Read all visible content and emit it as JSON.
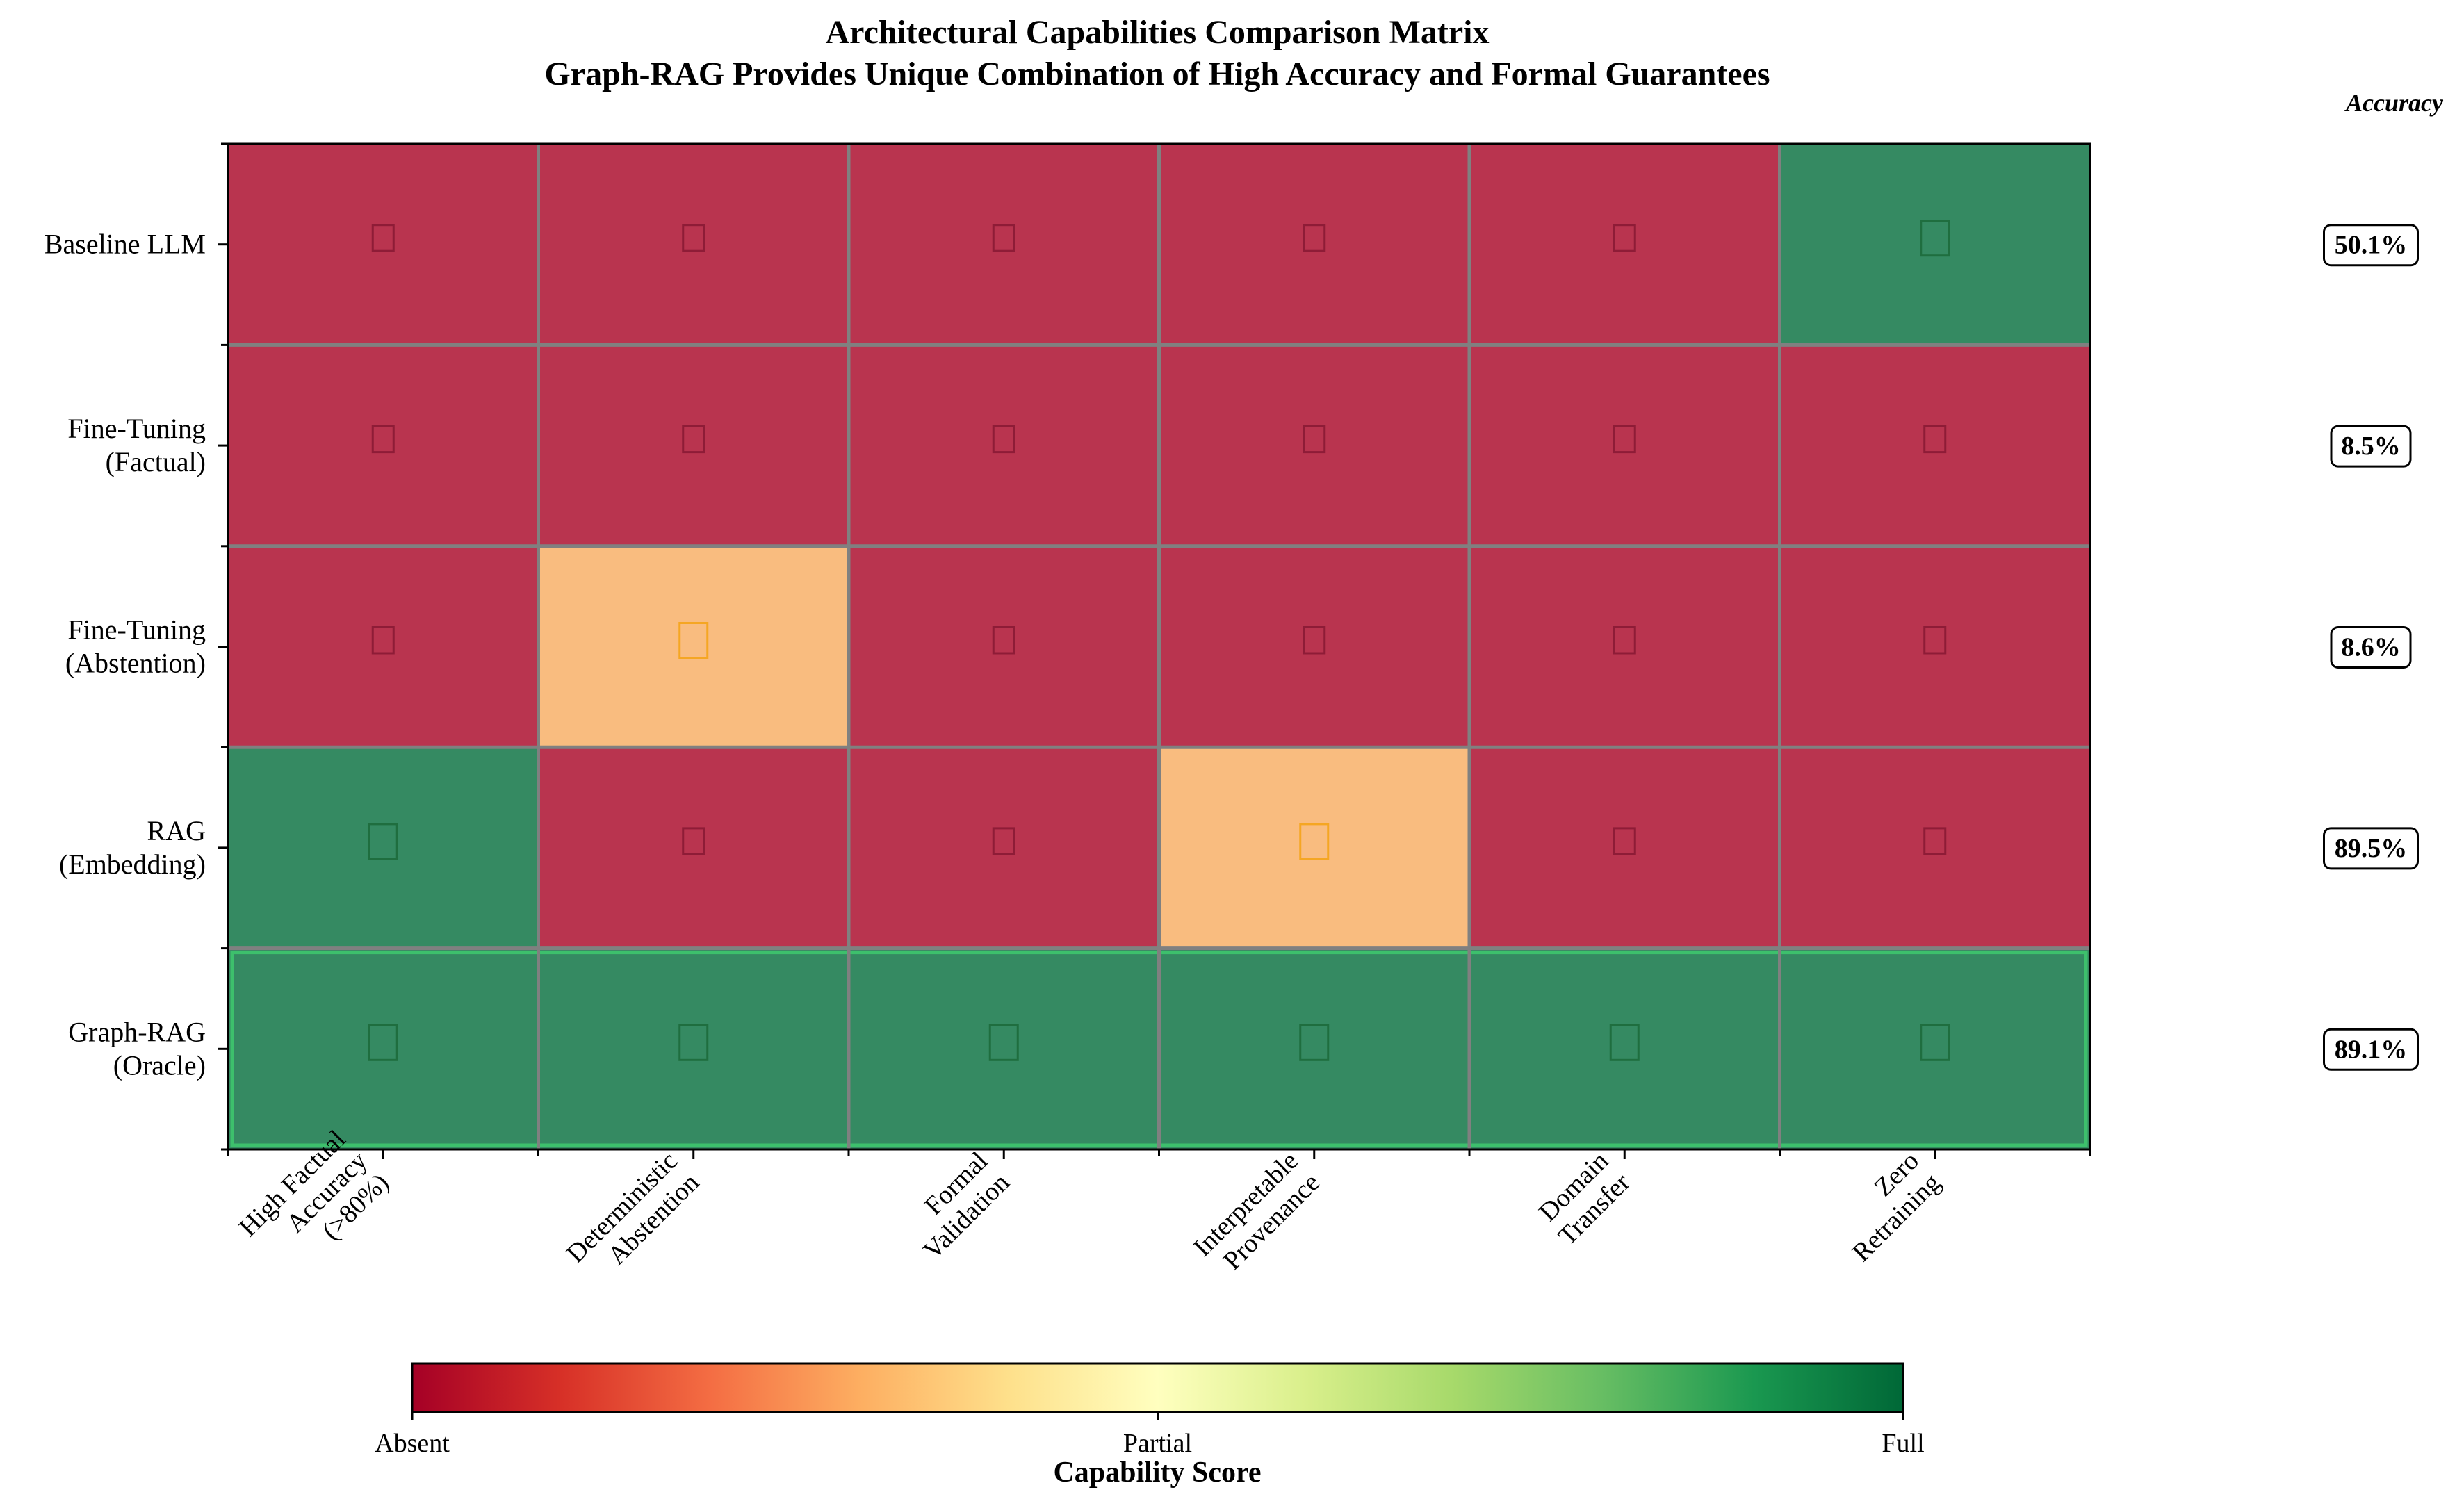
{
  "chart_data": {
    "type": "heatmap",
    "title": "Architectural Capabilities Comparison Matrix",
    "subtitle": "Graph-RAG Provides Unique Combination of High Accuracy and Formal Guarantees",
    "rows": [
      [
        "Baseline LLM"
      ],
      [
        "Fine-Tuning",
        "(Factual)"
      ],
      [
        "Fine-Tuning",
        "(Abstention)"
      ],
      [
        "RAG",
        "(Embedding)"
      ],
      [
        "Graph-RAG",
        "(Oracle)"
      ]
    ],
    "columns": [
      [
        "High Factual",
        "Accuracy",
        "(>80%)"
      ],
      [
        "Deterministic",
        "Abstention"
      ],
      [
        "Formal",
        "Validation"
      ],
      [
        "Interpretable",
        "Provenance"
      ],
      [
        "Domain",
        "Transfer"
      ],
      [
        "Zero",
        "Retraining"
      ]
    ],
    "values": [
      [
        0,
        0,
        0,
        0,
        0,
        1
      ],
      [
        0,
        0,
        0,
        0,
        0,
        0
      ],
      [
        0,
        0.5,
        0,
        0,
        0,
        0
      ],
      [
        1,
        0,
        0,
        0.5,
        0,
        0
      ],
      [
        1,
        1,
        1,
        1,
        1,
        1
      ]
    ],
    "highlight_row": 4,
    "accuracy_header": "Accuracy",
    "accuracy": [
      "50.1%",
      "8.5%",
      "8.6%",
      "89.5%",
      "89.1%"
    ],
    "colorbar": {
      "title": "Capability Score",
      "ticks": [
        "Absent",
        "Partial",
        "Full"
      ],
      "range": [
        0,
        1
      ],
      "colormap": "RdYlGn"
    },
    "colors": {
      "absent": "#b9344f",
      "partial": "#f9bc7f",
      "full": "#358a62",
      "grid": "#808080",
      "highlight_border": "#3dc06c"
    }
  }
}
